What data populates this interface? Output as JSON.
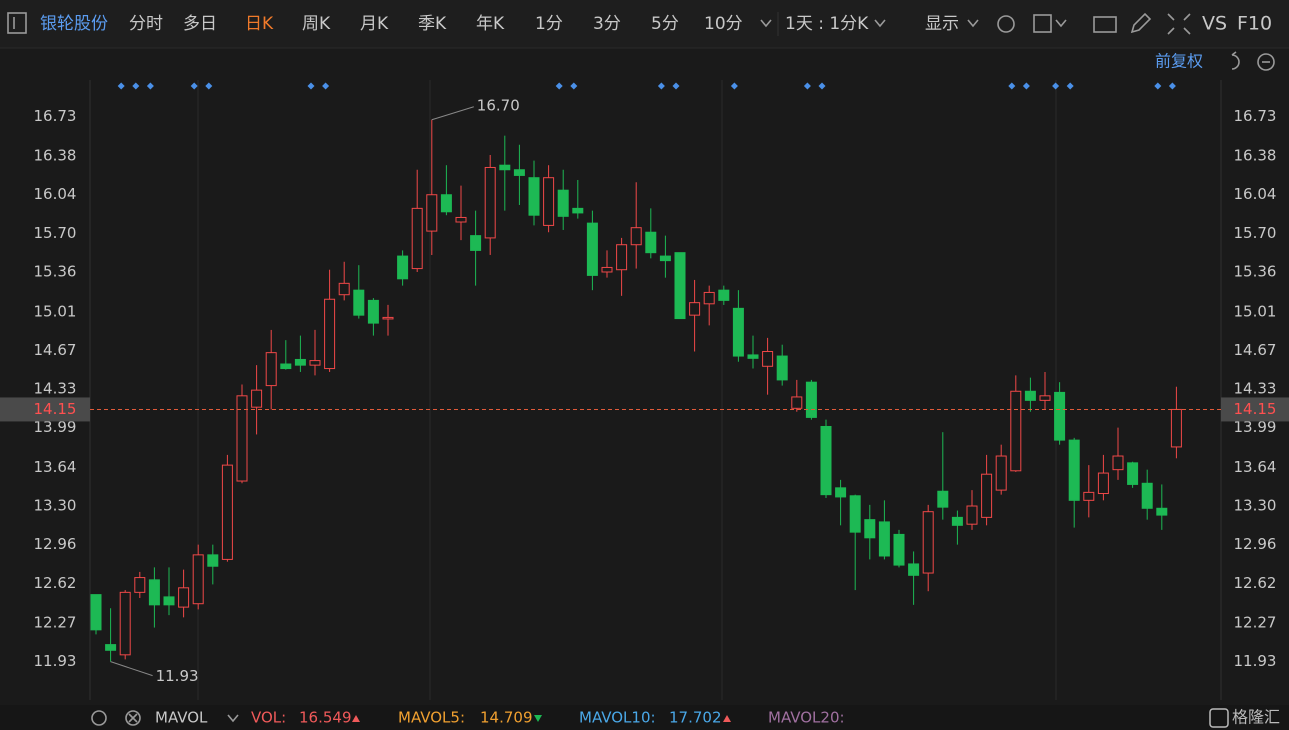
{
  "toolbar": {
    "stock": "银轮股份",
    "tabs": [
      "分时",
      "多日",
      "日K",
      "周K",
      "月K",
      "季K",
      "年K",
      "1分",
      "3分",
      "5分",
      "10分"
    ],
    "period": "1天 : 1分K",
    "display": "显示",
    "vs": "VS",
    "f10": "F10"
  },
  "chart_data": {
    "type": "candlestick",
    "adjust": "前复权",
    "up_color": "#f04848",
    "down_color": "#1db954",
    "open": [
      12.52,
      12.08,
      11.99,
      12.54,
      12.65,
      12.5,
      12.41,
      12.44,
      12.87,
      12.83,
      13.52,
      14.17,
      14.36,
      14.55,
      14.59,
      14.54,
      14.51,
      15.16,
      15.2,
      15.11,
      14.95,
      15.5,
      15.39,
      15.72,
      16.04,
      15.8,
      15.68,
      15.66,
      16.3,
      16.26,
      16.19,
      15.77,
      16.08,
      15.92,
      15.79,
      15.36,
      15.38,
      15.6,
      15.71,
      15.5,
      15.53,
      14.98,
      15.08,
      15.2,
      15.04,
      14.63,
      14.53,
      14.62,
      14.16,
      14.39,
      14.0,
      13.46,
      13.39,
      13.18,
      13.16,
      13.05,
      12.79,
      12.71,
      13.43,
      13.2,
      13.14,
      13.2,
      13.44,
      13.61,
      14.31,
      14.23,
      14.3,
      13.88,
      13.35,
      13.41,
      13.62,
      13.68,
      13.5,
      13.28,
      13.82
    ],
    "high": [
      12.52,
      12.4,
      12.56,
      12.72,
      12.76,
      12.76,
      12.74,
      12.96,
      12.96,
      13.75,
      14.37,
      14.54,
      14.85,
      14.76,
      14.8,
      14.85,
      15.38,
      15.45,
      15.42,
      15.13,
      15.07,
      15.55,
      16.26,
      16.7,
      16.3,
      16.12,
      15.9,
      16.39,
      16.56,
      16.48,
      16.34,
      16.3,
      16.26,
      16.17,
      15.9,
      15.55,
      15.66,
      16.15,
      15.92,
      15.68,
      15.53,
      15.29,
      15.24,
      15.24,
      15.2,
      14.8,
      14.78,
      14.72,
      14.41,
      14.41,
      14.06,
      13.53,
      13.4,
      13.31,
      13.35,
      13.09,
      12.9,
      13.31,
      13.95,
      13.26,
      13.44,
      13.75,
      13.84,
      14.45,
      14.43,
      14.48,
      14.39,
      13.9,
      13.66,
      13.75,
      13.99,
      13.69,
      13.62,
      13.49,
      14.35
    ],
    "low": [
      12.17,
      11.93,
      11.95,
      12.49,
      12.23,
      12.34,
      12.32,
      12.39,
      12.61,
      12.81,
      13.5,
      13.93,
      14.15,
      14.5,
      14.48,
      14.45,
      14.48,
      15.11,
      14.95,
      14.8,
      14.8,
      15.24,
      15.36,
      15.51,
      15.86,
      15.64,
      15.24,
      15.51,
      15.9,
      15.95,
      15.77,
      15.71,
      15.73,
      15.83,
      15.2,
      15.31,
      15.15,
      15.39,
      15.48,
      15.31,
      14.95,
      14.66,
      14.89,
      15.07,
      14.57,
      14.51,
      14.28,
      14.36,
      14.13,
      14.06,
      13.37,
      13.13,
      12.56,
      12.83,
      12.83,
      12.76,
      12.43,
      12.55,
      13.18,
      12.96,
      13.09,
      13.13,
      13.4,
      13.6,
      14.13,
      14.15,
      13.84,
      13.11,
      13.2,
      13.35,
      13.53,
      13.46,
      13.18,
      13.09,
      13.72
    ],
    "close": [
      12.21,
      12.03,
      12.54,
      12.67,
      12.43,
      12.43,
      12.58,
      12.87,
      12.77,
      13.66,
      14.27,
      14.32,
      14.65,
      14.51,
      14.54,
      14.58,
      15.12,
      15.26,
      14.98,
      14.91,
      14.96,
      15.3,
      15.92,
      16.04,
      15.89,
      15.84,
      15.55,
      16.28,
      16.26,
      16.21,
      15.86,
      16.19,
      15.85,
      15.88,
      15.33,
      15.4,
      15.6,
      15.75,
      15.53,
      15.46,
      14.95,
      15.09,
      15.18,
      15.11,
      14.62,
      14.6,
      14.66,
      14.41,
      14.26,
      14.08,
      13.4,
      13.38,
      13.07,
      13.02,
      12.86,
      12.78,
      12.69,
      13.25,
      13.29,
      13.13,
      13.3,
      13.58,
      13.74,
      14.31,
      14.23,
      14.27,
      13.88,
      13.35,
      13.42,
      13.59,
      13.74,
      13.49,
      13.28,
      13.22,
      14.15
    ],
    "ylim": [
      11.61,
      17.05
    ],
    "yticks": [
      16.73,
      16.38,
      16.04,
      {
        "value": 15.7,
        "label": "15.70"
      },
      15.36,
      15.01,
      14.67,
      14.33,
      13.99,
      13.64,
      {
        "value": 13.3,
        "label": "13.30"
      },
      12.96,
      12.62,
      12.27,
      11.93
    ],
    "last_price": 14.15,
    "high_annotation": {
      "value": 16.7,
      "label": "16.70"
    },
    "low_annotation": 11.93,
    "grid": false
  },
  "indicator": {
    "name": "MAVOL",
    "vol_label": "VOL:",
    "vol": 16.549,
    "mavol5_label": "MAVOL5:",
    "mavol5": 14.709,
    "mavol10_label": "MAVOL10:",
    "mavol10": 17.702,
    "mavol20_label": "MAVOL20:"
  },
  "watermark": "格隆汇"
}
